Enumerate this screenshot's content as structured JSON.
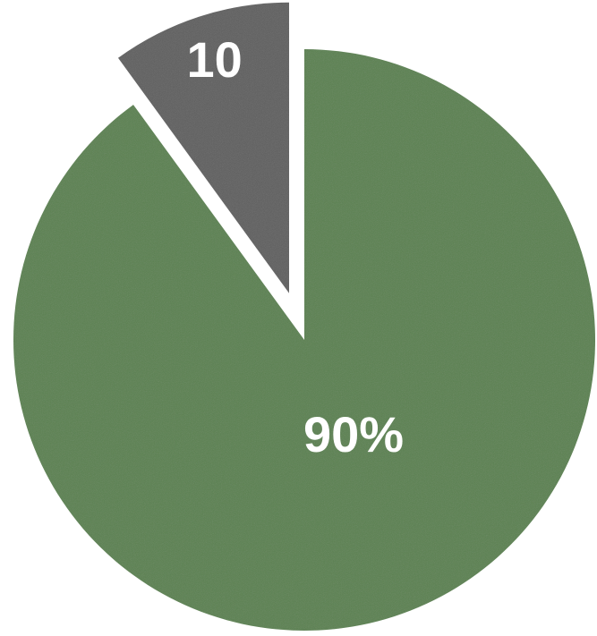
{
  "chart_data": {
    "type": "pie",
    "title": "",
    "slices": [
      {
        "value": 90,
        "label": "90%",
        "color": "#5a814f",
        "exploded": false
      },
      {
        "value": 10,
        "label": "10",
        "color": "#5f5f5f",
        "exploded": true
      }
    ],
    "start_angle_deg": 0,
    "direction": "clockwise",
    "legend": "none"
  }
}
